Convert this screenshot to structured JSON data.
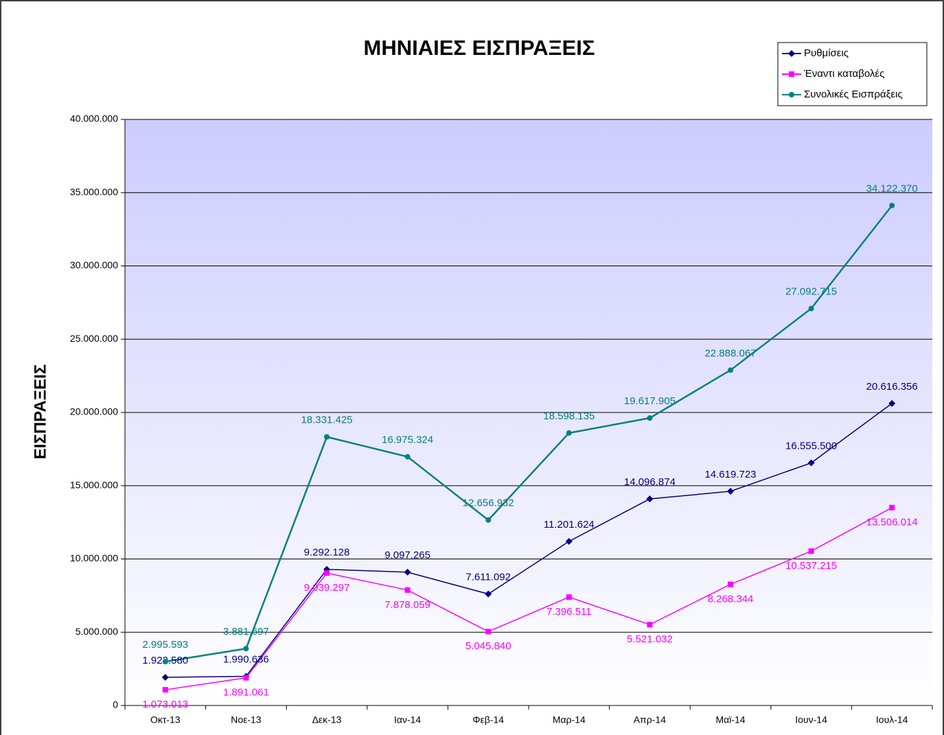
{
  "chart_data": {
    "type": "line",
    "title": "ΜΗΝΙΑΙΕΣ ΕΙΣΠΡΑΞΕΙΣ",
    "y_label": "ΕΙΣΠΡΑΞΕΙΣ",
    "categories": [
      "Οκτ-13",
      "Νοε-13",
      "Δεκ-13",
      "Ιαν-14",
      "Φεβ-14",
      "Μαρ-14",
      "Απρ-14",
      "Μαϊ-14",
      "Ιουν-14",
      "Ιουλ-14"
    ],
    "series": [
      {
        "name": "Ρυθμίσεις",
        "color": "#000080",
        "marker": "diamond",
        "label_position": "above",
        "values": [
          1922580,
          1990636,
          9292128,
          9097265,
          7611092,
          11201624,
          14096874,
          14619723,
          16555500,
          20616356
        ],
        "value_labels": [
          "1.922.580",
          "1.990.636",
          "9.292.128",
          "9.097.265",
          "7.611.092",
          "11.201.624",
          "14.096.874",
          "14.619.723",
          "16.555.500",
          "20.616.356"
        ]
      },
      {
        "name": "Έναντι καταβολές",
        "color": "#ff00ff",
        "marker": "square",
        "label_position": "below",
        "values": [
          1073013,
          1891061,
          9039297,
          7878059,
          5045840,
          7396511,
          5521032,
          8268344,
          10537215,
          13506014
        ],
        "value_labels": [
          "1.073.013",
          "1.891.061",
          "9.039.297",
          "7.878.059",
          "5.045.840",
          "7.396.511",
          "5.521.032",
          "8.268.344",
          "10.537.215",
          "13.506.014"
        ]
      },
      {
        "name": "Συνολικές Εισπράξεις",
        "color": "#008080",
        "marker": "circle",
        "label_position": "above",
        "values": [
          2995593,
          3881697,
          18331425,
          16975324,
          12656932,
          18598135,
          19617905,
          22888067,
          27092715,
          34122370
        ],
        "value_labels": [
          "2.995.593",
          "3.881.697",
          "18.331.425",
          "16.975.324",
          "12.656.932",
          "18.598.135",
          "19.617.905",
          "22.888.067",
          "27.092.715",
          "34.122.370"
        ]
      }
    ],
    "ylim": [
      0,
      40000000
    ],
    "yticks": [
      0,
      {
        "value": 5000000,
        "label": "5.000.000"
      },
      {
        "value": 10000000,
        "label": "10.000.000"
      },
      {
        "value": 15000000,
        "label": "15.000.000"
      },
      {
        "value": 20000000,
        "label": "20.000.000"
      },
      {
        "value": 25000000,
        "label": "25.000.000"
      },
      {
        "value": 30000000,
        "label": "30.000.000"
      },
      {
        "value": 35000000,
        "label": "35.000.000"
      },
      {
        "value": 40000000,
        "label": "40.000.000"
      }
    ],
    "grid": true,
    "legend": "top-right"
  }
}
